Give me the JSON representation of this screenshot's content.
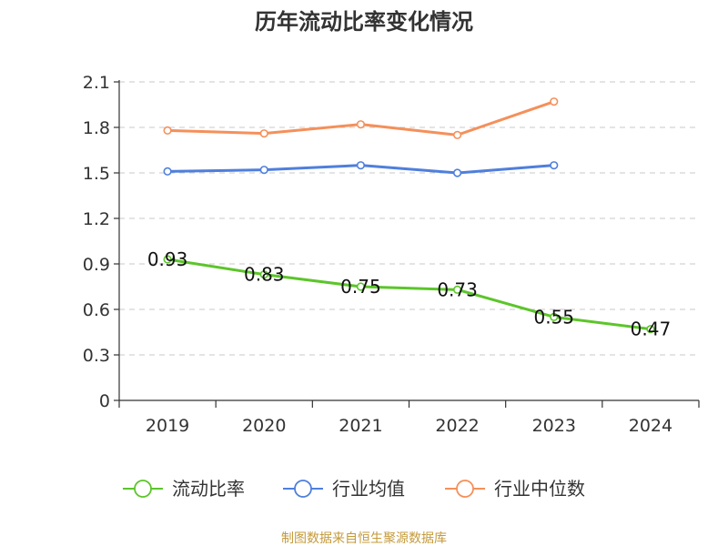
{
  "chart_data": {
    "type": "line",
    "title": "历年流动比率变化情况",
    "categories": [
      "2019",
      "2020",
      "2021",
      "2022",
      "2023",
      "2024"
    ],
    "ylim": [
      0,
      2.1
    ],
    "yticks": [
      "0",
      "0.3",
      "0.6",
      "0.9",
      "1.2",
      "1.5",
      "1.8",
      "2.1"
    ],
    "grid": true,
    "legend_position": "bottom",
    "series": [
      {
        "name": "流动比率",
        "color": "#5cc52a",
        "values": [
          0.93,
          0.83,
          0.75,
          0.73,
          0.55,
          0.47
        ],
        "labels": [
          "0.93",
          "0.83",
          "0.75",
          "0.73",
          "0.55",
          "0.47"
        ]
      },
      {
        "name": "行业均值",
        "color": "#4f7fdc",
        "values": [
          1.51,
          1.52,
          1.55,
          1.5,
          1.55,
          null
        ]
      },
      {
        "name": "行业中位数",
        "color": "#f5905a",
        "values": [
          1.78,
          1.76,
          1.82,
          1.75,
          1.97,
          null
        ]
      }
    ],
    "source": "制图数据来自恒生聚源数据库"
  }
}
